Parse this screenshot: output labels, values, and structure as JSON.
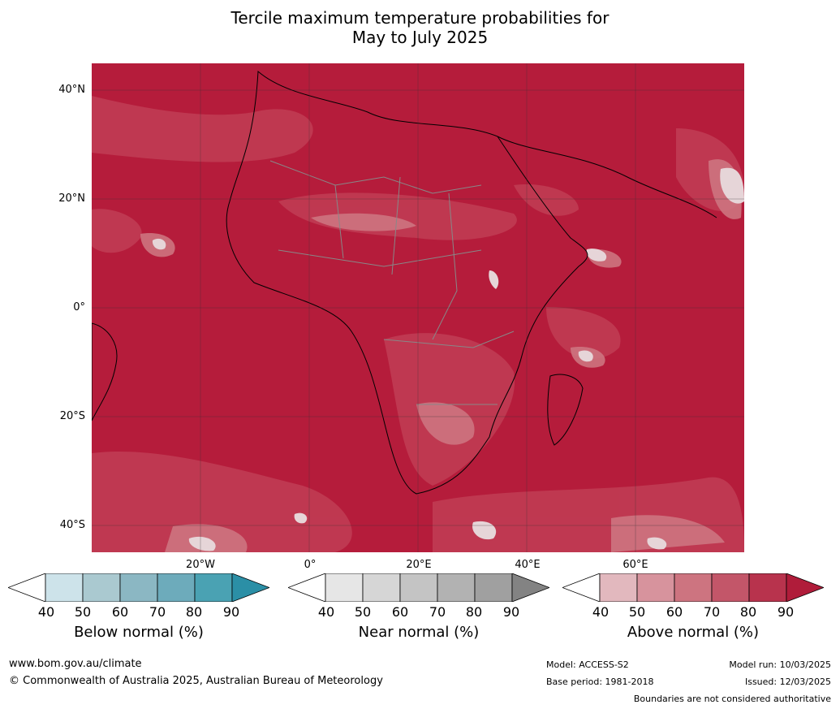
{
  "title_line1": "Tercile maximum temperature probabilities for",
  "title_line2": "May to July 2025",
  "map": {
    "latitude_labels": [
      "40°N",
      "20°N",
      "0°",
      "20°S",
      "40°S"
    ],
    "longitude_labels": [
      "20°W",
      "0°",
      "20°E",
      "40°E",
      "60°E"
    ],
    "dominant_category": "Above normal",
    "dominant_probability_range": "80-90"
  },
  "colorbars": [
    {
      "label": "Below normal (%)",
      "ticks": [
        "40",
        "50",
        "60",
        "70",
        "80",
        "90"
      ],
      "colors": [
        "#ffffff",
        "#cde3ea",
        "#aac9d0",
        "#8bb7c3",
        "#6dabbb",
        "#4aa2b3",
        "#2b8fa6"
      ]
    },
    {
      "label": "Near normal (%)",
      "ticks": [
        "40",
        "50",
        "60",
        "70",
        "80",
        "90"
      ],
      "colors": [
        "#ffffff",
        "#e6e6e6",
        "#d6d6d6",
        "#c4c4c4",
        "#b2b2b2",
        "#a0a0a0",
        "#838383"
      ]
    },
    {
      "label": "Above normal (%)",
      "ticks": [
        "40",
        "50",
        "60",
        "70",
        "80",
        "90"
      ],
      "colors": [
        "#ffffff",
        "#e2b8be",
        "#d7939d",
        "#cd7480",
        "#c35669",
        "#b8334d",
        "#b01c3a"
      ]
    }
  ],
  "footer": {
    "website": "www.bom.gov.au/climate",
    "copyright": "© Commonwealth of Australia 2025, Australian Bureau of Meteorology",
    "model": "Model: ACCESS-S2",
    "base_period": "Base period: 1981-2018",
    "model_run": "Model run: 10/03/2025",
    "issued": "Issued: 12/03/2025",
    "disclaimer": "Boundaries are not considered authoritative"
  }
}
